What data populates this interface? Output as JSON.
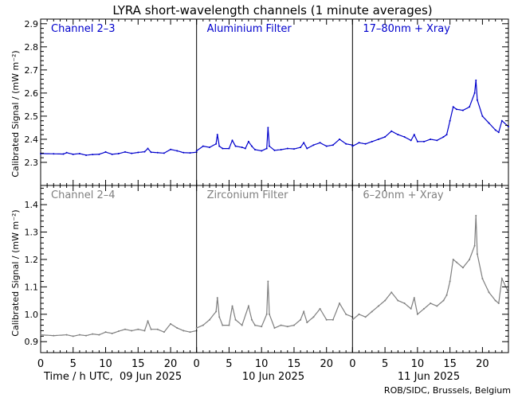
{
  "title": "LYRA short-wavelength channels (1 minute averages)",
  "ylabel": "Calibrated Signal / (mW m⁻²)",
  "xlabel_prefix": "Time / h UTC,",
  "footer": "ROB/SIDC, Brussels, Belgium",
  "colors": {
    "top_series": "#0000cc",
    "bottom_series": "#7f7f7f",
    "axes": "#000000"
  },
  "chart_data": [
    {
      "type": "scatter",
      "row": "top",
      "title": "LYRA short-wavelength channels (1 minute averages)",
      "ylabel": "Calibrated Signal / (mW m⁻²)",
      "xlabel": "Time / h UTC",
      "ylim": [
        2.2,
        2.92
      ],
      "yticks": [
        "2.3",
        "2.4",
        "2.5",
        "2.6",
        "2.7",
        "2.8",
        "2.9"
      ],
      "xlim": [
        0,
        72
      ],
      "panels": [
        {
          "label": "Channel 2–3",
          "date": "09 Jun 2025",
          "xticks": [
            "0",
            "5",
            "10",
            "15",
            "20"
          ],
          "points": [
            [
              0,
              2.338
            ],
            [
              2,
              2.337
            ],
            [
              3.5,
              2.336
            ],
            [
              4,
              2.342
            ],
            [
              5,
              2.335
            ],
            [
              6,
              2.338
            ],
            [
              7,
              2.331
            ],
            [
              8,
              2.334
            ],
            [
              9,
              2.335
            ],
            [
              10,
              2.345
            ],
            [
              11,
              2.335
            ],
            [
              12,
              2.338
            ],
            [
              13,
              2.345
            ],
            [
              14,
              2.339
            ],
            [
              15,
              2.343
            ],
            [
              16,
              2.346
            ],
            [
              16.5,
              2.36
            ],
            [
              17,
              2.344
            ],
            [
              18,
              2.342
            ],
            [
              19,
              2.34
            ],
            [
              20,
              2.356
            ],
            [
              21,
              2.35
            ],
            [
              22,
              2.342
            ],
            [
              23,
              2.341
            ],
            [
              24,
              2.344
            ]
          ]
        },
        {
          "label": "Aluminium Filter",
          "date": "10 Jun 2025",
          "xticks": [
            "0",
            "5",
            "10",
            "15",
            "20"
          ],
          "points": [
            [
              0,
              2.35
            ],
            [
              1,
              2.37
            ],
            [
              2,
              2.365
            ],
            [
              3,
              2.38
            ],
            [
              3.2,
              2.42
            ],
            [
              3.5,
              2.37
            ],
            [
              4,
              2.36
            ],
            [
              5,
              2.36
            ],
            [
              5.5,
              2.395
            ],
            [
              6,
              2.37
            ],
            [
              7,
              2.365
            ],
            [
              7.5,
              2.36
            ],
            [
              8,
              2.39
            ],
            [
              8.5,
              2.37
            ],
            [
              9,
              2.355
            ],
            [
              10,
              2.35
            ],
            [
              10.8,
              2.36
            ],
            [
              11,
              2.45
            ],
            [
              11.2,
              2.37
            ],
            [
              12,
              2.352
            ],
            [
              13,
              2.355
            ],
            [
              14,
              2.36
            ],
            [
              15,
              2.358
            ],
            [
              16,
              2.365
            ],
            [
              16.5,
              2.385
            ],
            [
              17,
              2.36
            ],
            [
              18,
              2.375
            ],
            [
              19,
              2.385
            ],
            [
              20,
              2.37
            ],
            [
              21,
              2.375
            ],
            [
              22,
              2.4
            ],
            [
              23,
              2.38
            ],
            [
              24,
              2.375
            ]
          ]
        },
        {
          "label": "17–80nm + Xray",
          "date": "11 Jun 2025",
          "xticks": [
            "0",
            "5",
            "10",
            "15",
            "20"
          ],
          "points": [
            [
              0,
              2.37
            ],
            [
              1,
              2.385
            ],
            [
              2,
              2.38
            ],
            [
              3,
              2.39
            ],
            [
              4,
              2.4
            ],
            [
              5,
              2.41
            ],
            [
              6,
              2.435
            ],
            [
              7,
              2.42
            ],
            [
              8,
              2.41
            ],
            [
              9,
              2.395
            ],
            [
              9.5,
              2.42
            ],
            [
              10,
              2.39
            ],
            [
              11,
              2.39
            ],
            [
              12,
              2.4
            ],
            [
              13,
              2.395
            ],
            [
              14,
              2.41
            ],
            [
              14.5,
              2.42
            ],
            [
              15,
              2.48
            ],
            [
              15.5,
              2.54
            ],
            [
              16,
              2.53
            ],
            [
              17,
              2.525
            ],
            [
              18,
              2.54
            ],
            [
              18.8,
              2.6
            ],
            [
              19,
              2.655
            ],
            [
              19.2,
              2.57
            ],
            [
              20,
              2.5
            ],
            [
              21,
              2.47
            ],
            [
              22,
              2.44
            ],
            [
              22.5,
              2.43
            ],
            [
              23,
              2.48
            ],
            [
              24,
              2.455
            ]
          ]
        }
      ]
    },
    {
      "type": "scatter",
      "row": "bottom",
      "ylabel": "Calibrated Signal / (mW m⁻²)",
      "xlabel": "Time / h UTC",
      "ylim": [
        0.86,
        1.47
      ],
      "yticks": [
        "0.9",
        "1.0",
        "1.1",
        "1.2",
        "1.3",
        "1.4"
      ],
      "xlim": [
        0,
        72
      ],
      "panels": [
        {
          "label": "Channel 2–4",
          "date": "09 Jun 2025",
          "xticks": [
            "0",
            "5",
            "10",
            "15",
            "20"
          ],
          "points": [
            [
              0,
              0.925
            ],
            [
              2,
              0.922
            ],
            [
              4,
              0.925
            ],
            [
              5,
              0.92
            ],
            [
              6,
              0.925
            ],
            [
              7,
              0.922
            ],
            [
              8,
              0.928
            ],
            [
              9,
              0.925
            ],
            [
              10,
              0.935
            ],
            [
              11,
              0.93
            ],
            [
              12,
              0.938
            ],
            [
              13,
              0.945
            ],
            [
              14,
              0.94
            ],
            [
              15,
              0.945
            ],
            [
              16,
              0.94
            ],
            [
              16.5,
              0.975
            ],
            [
              17,
              0.945
            ],
            [
              18,
              0.945
            ],
            [
              19,
              0.935
            ],
            [
              20,
              0.965
            ],
            [
              21,
              0.95
            ],
            [
              22,
              0.94
            ],
            [
              23,
              0.935
            ],
            [
              24,
              0.94
            ]
          ]
        },
        {
          "label": "Zirconium Filter",
          "date": "10 Jun 2025",
          "xticks": [
            "0",
            "5",
            "10",
            "15",
            "20"
          ],
          "points": [
            [
              0,
              0.95
            ],
            [
              1,
              0.96
            ],
            [
              2,
              0.98
            ],
            [
              3,
              1.01
            ],
            [
              3.2,
              1.06
            ],
            [
              3.5,
              0.99
            ],
            [
              4,
              0.96
            ],
            [
              5,
              0.96
            ],
            [
              5.5,
              1.03
            ],
            [
              6,
              0.98
            ],
            [
              7,
              0.96
            ],
            [
              8,
              1.03
            ],
            [
              8.5,
              0.98
            ],
            [
              9,
              0.96
            ],
            [
              10,
              0.955
            ],
            [
              10.8,
              1.0
            ],
            [
              11,
              1.12
            ],
            [
              11.2,
              1.0
            ],
            [
              12,
              0.95
            ],
            [
              13,
              0.96
            ],
            [
              14,
              0.955
            ],
            [
              15,
              0.96
            ],
            [
              16,
              0.98
            ],
            [
              16.5,
              1.01
            ],
            [
              17,
              0.97
            ],
            [
              18,
              0.99
            ],
            [
              19,
              1.02
            ],
            [
              20,
              0.98
            ],
            [
              21,
              0.98
            ],
            [
              22,
              1.04
            ],
            [
              23,
              1.0
            ],
            [
              24,
              0.99
            ]
          ]
        },
        {
          "label": "6–20nm + Xray",
          "date": "11 Jun 2025",
          "xticks": [
            "0",
            "5",
            "10",
            "15",
            "20"
          ],
          "points": [
            [
              0,
              0.98
            ],
            [
              1,
              1.0
            ],
            [
              2,
              0.99
            ],
            [
              3,
              1.01
            ],
            [
              4,
              1.03
            ],
            [
              5,
              1.05
            ],
            [
              6,
              1.08
            ],
            [
              7,
              1.05
            ],
            [
              8,
              1.04
            ],
            [
              9,
              1.02
            ],
            [
              9.5,
              1.06
            ],
            [
              10,
              1.0
            ],
            [
              11,
              1.02
            ],
            [
              12,
              1.04
            ],
            [
              13,
              1.03
            ],
            [
              14,
              1.05
            ],
            [
              14.5,
              1.07
            ],
            [
              15,
              1.12
            ],
            [
              15.5,
              1.2
            ],
            [
              16,
              1.19
            ],
            [
              17,
              1.17
            ],
            [
              18,
              1.2
            ],
            [
              18.8,
              1.25
            ],
            [
              19,
              1.36
            ],
            [
              19.2,
              1.22
            ],
            [
              20,
              1.13
            ],
            [
              21,
              1.08
            ],
            [
              22,
              1.05
            ],
            [
              22.5,
              1.04
            ],
            [
              23,
              1.13
            ],
            [
              24,
              1.08
            ]
          ]
        }
      ]
    }
  ]
}
